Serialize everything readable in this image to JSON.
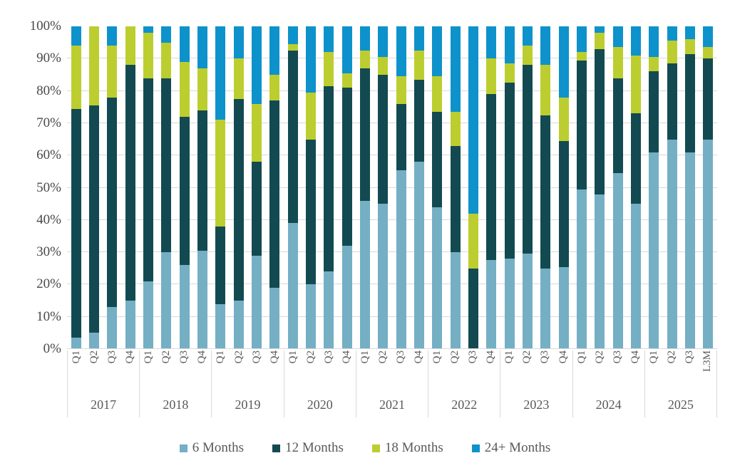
{
  "chart_data": {
    "type": "bar",
    "stacking": "percent",
    "title": "",
    "xlabel": "",
    "ylabel": "",
    "grid": true,
    "legend_position": "bottom",
    "y_axis": {
      "min": 0,
      "max": 100,
      "ticks": [
        "0%",
        "10%",
        "20%",
        "30%",
        "40%",
        "50%",
        "60%",
        "70%",
        "80%",
        "90%",
        "100%"
      ]
    },
    "series_order": [
      "6 Months",
      "12 Months",
      "18 Months",
      "24+ Months"
    ],
    "legend": [
      {
        "label": "6 Months",
        "color": "#74AFC4"
      },
      {
        "label": "12 Months",
        "color": "#134A51"
      },
      {
        "label": "18 Months",
        "color": "#BCCE2F"
      },
      {
        "label": "24+ Months",
        "color": "#0E92CB"
      }
    ],
    "groups": [
      {
        "year": "2017",
        "bars": [
          {
            "label": "Q1",
            "values": [
              3.5,
              71,
              19.5,
              6
            ]
          },
          {
            "label": "Q2",
            "values": [
              5,
              70.5,
              24.5,
              0
            ]
          },
          {
            "label": "Q3",
            "values": [
              13,
              65,
              16,
              6
            ]
          },
          {
            "label": "Q4",
            "values": [
              15,
              73,
              12,
              0
            ]
          }
        ]
      },
      {
        "year": "2018",
        "bars": [
          {
            "label": "Q1",
            "values": [
              21,
              63,
              14,
              2
            ]
          },
          {
            "label": "Q2",
            "values": [
              30,
              54,
              11,
              5
            ]
          },
          {
            "label": "Q3",
            "values": [
              26,
              46,
              17,
              11
            ]
          },
          {
            "label": "Q4",
            "values": [
              30.5,
              43.5,
              13,
              13
            ]
          }
        ]
      },
      {
        "year": "2019",
        "bars": [
          {
            "label": "Q1",
            "values": [
              14,
              24,
              33,
              29
            ]
          },
          {
            "label": "Q2",
            "values": [
              15,
              62.5,
              12.5,
              10
            ]
          },
          {
            "label": "Q3",
            "values": [
              29,
              29,
              18,
              24
            ]
          },
          {
            "label": "Q4",
            "values": [
              19,
              58,
              8,
              15
            ]
          }
        ]
      },
      {
        "year": "2020",
        "bars": [
          {
            "label": "Q1",
            "values": [
              39,
              53.5,
              2,
              5.5
            ]
          },
          {
            "label": "Q2",
            "values": [
              20,
              45,
              14.5,
              20.5
            ]
          },
          {
            "label": "Q3",
            "values": [
              24,
              57.5,
              10.5,
              8
            ]
          },
          {
            "label": "Q4",
            "values": [
              32,
              49,
              4.5,
              14.5
            ]
          }
        ]
      },
      {
        "year": "2021",
        "bars": [
          {
            "label": "Q1",
            "values": [
              46,
              41,
              5.5,
              7.5
            ]
          },
          {
            "label": "Q2",
            "values": [
              45,
              40,
              5.5,
              9.5
            ]
          },
          {
            "label": "Q3",
            "values": [
              55.5,
              20.5,
              8.5,
              15.5
            ]
          },
          {
            "label": "Q4",
            "values": [
              58,
              25.5,
              9,
              7.5
            ]
          }
        ]
      },
      {
        "year": "2022",
        "bars": [
          {
            "label": "Q1",
            "values": [
              44,
              29.5,
              11,
              15.5
            ]
          },
          {
            "label": "Q2",
            "values": [
              30,
              33,
              10.5,
              26.5
            ]
          },
          {
            "label": "Q3",
            "values": [
              0,
              25,
              17,
              58
            ]
          },
          {
            "label": "Q4",
            "values": [
              27.5,
              51.5,
              11,
              10
            ]
          }
        ]
      },
      {
        "year": "2023",
        "bars": [
          {
            "label": "Q1",
            "values": [
              28,
              54.5,
              6,
              11.5
            ]
          },
          {
            "label": "Q2",
            "values": [
              29.5,
              58.5,
              6,
              6
            ]
          },
          {
            "label": "Q3",
            "values": [
              25,
              47.5,
              15.5,
              12
            ]
          },
          {
            "label": "Q4",
            "values": [
              25.5,
              39,
              13.5,
              22
            ]
          }
        ]
      },
      {
        "year": "2024",
        "bars": [
          {
            "label": "Q1",
            "values": [
              49.5,
              40,
              2.5,
              8
            ]
          },
          {
            "label": "Q2",
            "values": [
              48,
              45,
              5,
              2
            ]
          },
          {
            "label": "Q3",
            "values": [
              54.5,
              29.5,
              9.5,
              6.5
            ]
          },
          {
            "label": "Q4",
            "values": [
              45,
              28,
              18,
              9
            ]
          }
        ]
      },
      {
        "year": "2025",
        "bars": [
          {
            "label": "Q1",
            "values": [
              61,
              25,
              4.5,
              9.5
            ]
          },
          {
            "label": "Q2",
            "values": [
              65,
              23.5,
              7,
              4.5
            ]
          },
          {
            "label": "Q3",
            "values": [
              61,
              30.5,
              4.5,
              4
            ]
          },
          {
            "label": "L3M",
            "values": [
              65,
              25,
              3.5,
              6.5
            ]
          }
        ]
      }
    ],
    "colors": {
      "gridline": "#D9D9D9",
      "axis_text": "#484848",
      "label_text": "#595959"
    }
  }
}
